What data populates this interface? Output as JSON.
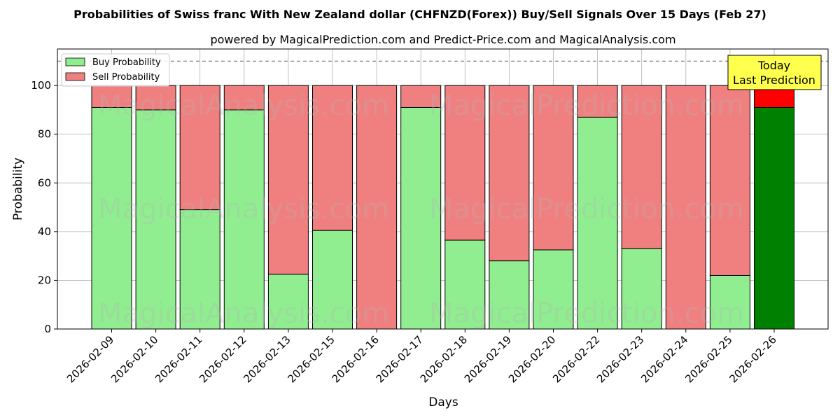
{
  "suptitle": "Probabilities of Swiss franc With New Zealand dollar (CHFNZD(Forex)) Buy/Sell Signals Over 15 Days (Feb 27)",
  "subtitle": "powered by MagicalPrediction.com and Predict-Price.com and MagicalAnalysis.com",
  "watermarks": [
    "MagicalAnalysis.com",
    "MagicalPrediction.com"
  ],
  "annotation": {
    "line1": "Today",
    "line2": "Last Prediction"
  },
  "legend": {
    "buy_label": "Buy Probability",
    "sell_label": "Sell Probability",
    "placement": "top-left"
  },
  "colors": {
    "buy": "#90ee90",
    "sell": "#f08080",
    "buy_today": "#008000",
    "sell_today": "#ff0000",
    "annotation_bg": "#ffff4d",
    "grid": "#b0b0b0",
    "threshold_line": "#808080"
  },
  "chart_data": {
    "type": "bar",
    "stacked": true,
    "title": "powered by MagicalPrediction.com and Predict-Price.com and MagicalAnalysis.com",
    "xlabel": "Days",
    "ylabel": "Probability",
    "ylim": [
      0,
      115
    ],
    "yticks": [
      0,
      20,
      40,
      60,
      80,
      100
    ],
    "grid": true,
    "threshold": 110,
    "categories": [
      "2026-02-09",
      "2026-02-10",
      "2026-02-11",
      "2026-02-12",
      "2026-02-13",
      "2026-02-15",
      "2026-02-16",
      "2026-02-17",
      "2026-02-18",
      "2026-02-19",
      "2026-02-20",
      "2026-02-22",
      "2026-02-23",
      "2026-02-24",
      "2026-02-25",
      "2026-02-26"
    ],
    "series": [
      {
        "name": "Buy Probability",
        "values": [
          91,
          90,
          49,
          90,
          22.5,
          40.5,
          0,
          91,
          36.5,
          28,
          32.5,
          87,
          33,
          0,
          22,
          91
        ]
      },
      {
        "name": "Sell Probability",
        "values": [
          9,
          10,
          51,
          10,
          77.5,
          59.5,
          100,
          9,
          63.5,
          72,
          67.5,
          13,
          67,
          100,
          78,
          9
        ]
      }
    ],
    "highlight_last": true
  }
}
